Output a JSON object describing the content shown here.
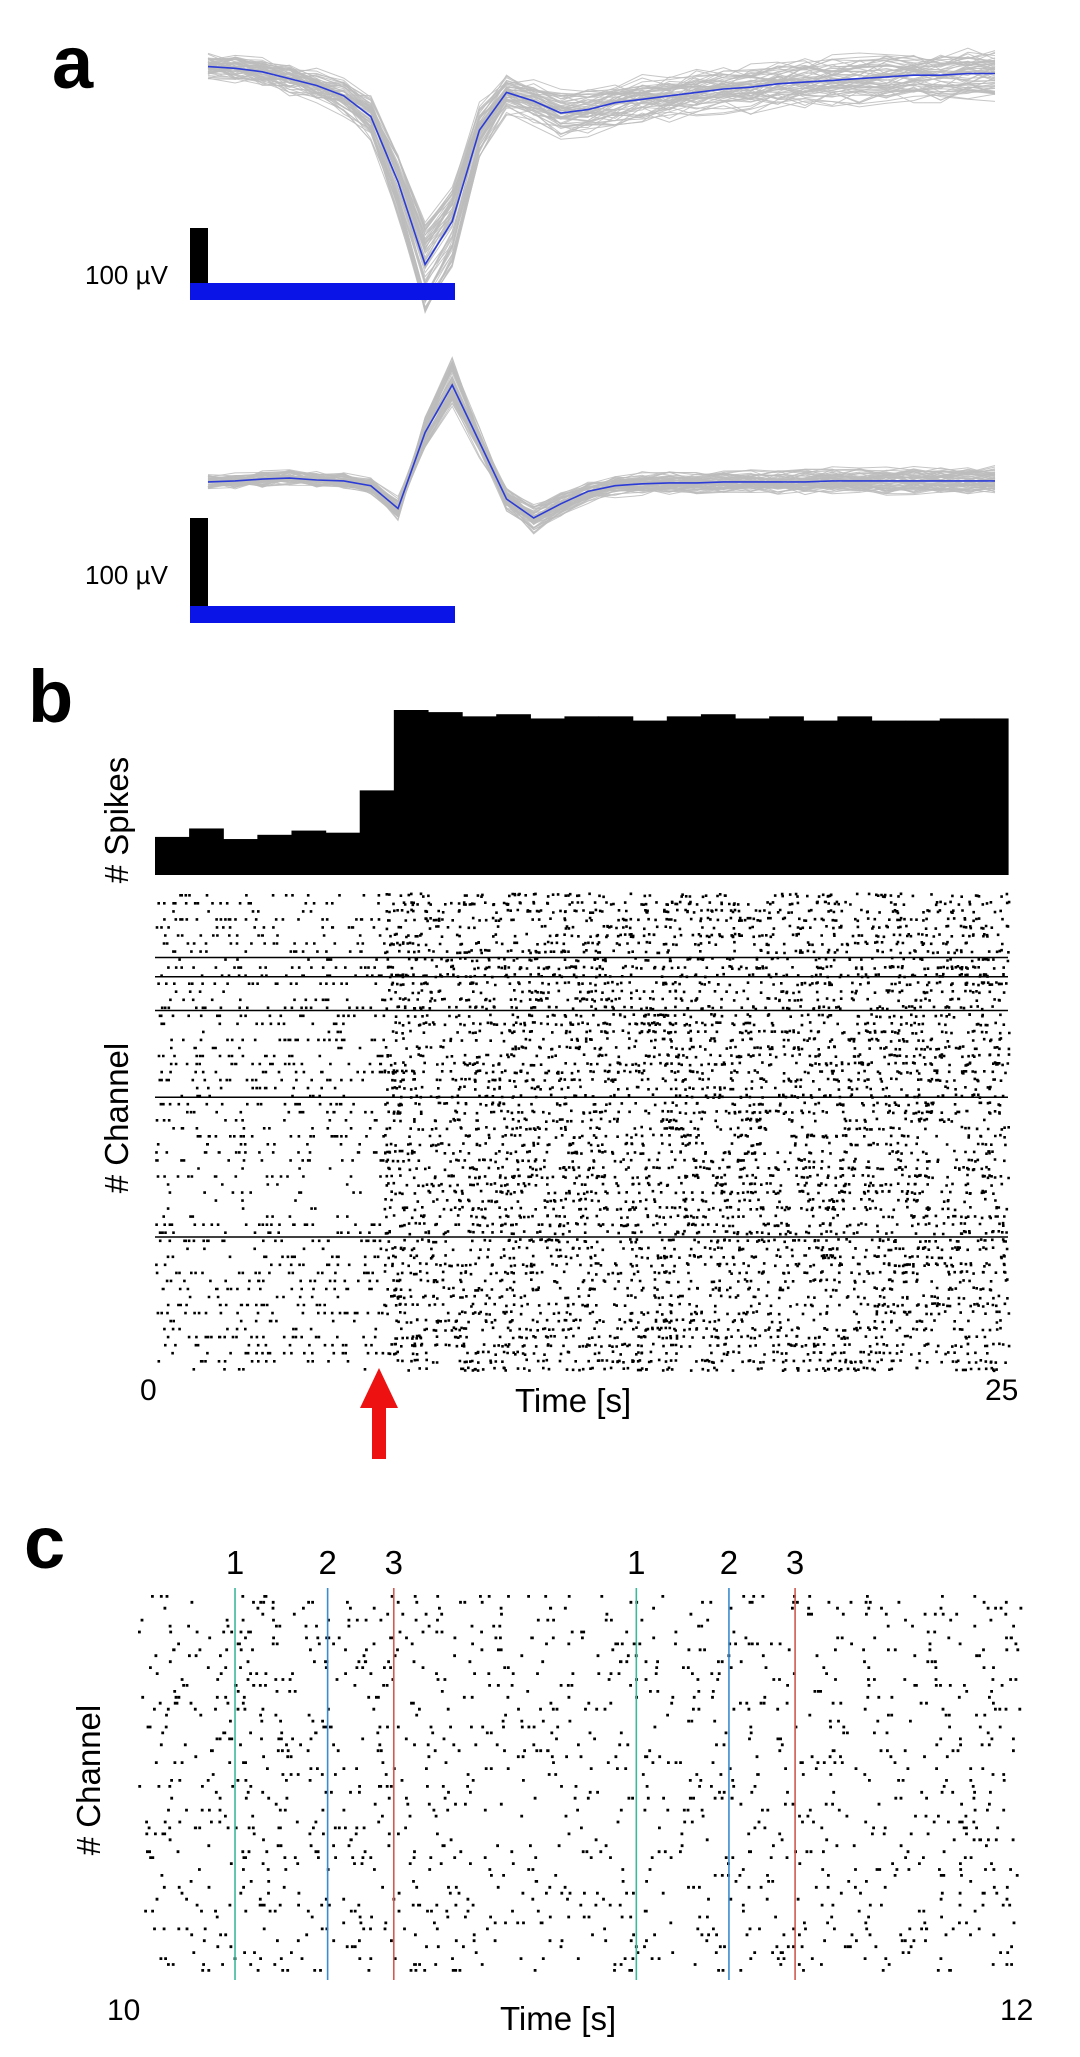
{
  "panel_a": {
    "letter": "a",
    "scale_label": "100 µV",
    "colors": {
      "trace": "#bcbcbc",
      "mean": "#2b3bd6",
      "scalebar_h": "#0a14e6",
      "scalebar_v": "#000000"
    }
  },
  "panel_b": {
    "letter": "b",
    "ylabel_top": "# Spikes",
    "ylabel_bottom": "# Channel",
    "xlabel": "Time [s]",
    "x_min_label": "0",
    "x_max_label": "25",
    "colors": {
      "bars": "#000000",
      "arrow": "#ee1111"
    }
  },
  "panel_c": {
    "letter": "c",
    "ylabel": "# Channel",
    "xlabel": "Time [s]",
    "x_min_label": "10",
    "x_max_label": "12",
    "markers": [
      {
        "label": "1",
        "color": "#3cb89a"
      },
      {
        "label": "2",
        "color": "#3a8cd0"
      },
      {
        "label": "3",
        "color": "#d05a50"
      },
      {
        "label": "1",
        "color": "#3cb89a"
      },
      {
        "label": "2",
        "color": "#3a8cd0"
      },
      {
        "label": "3",
        "color": "#d05a50"
      }
    ]
  },
  "chart_data": [
    {
      "type": "line",
      "panel": "a-top",
      "series": [
        {
          "values": [
            -5,
            -6,
            -8,
            -12,
            -16,
            -22,
            -34,
            -72,
            -120,
            -95,
            -42,
            -20,
            -25,
            -32,
            -30,
            -26,
            -24,
            -22,
            -20,
            -18,
            -17,
            -15,
            -14,
            -13,
            -12,
            -11,
            -10,
            -10,
            -9,
            -9
          ]
        }
      ]
    },
    {
      "type": "line",
      "panel": "a-bottom",
      "series": [
        {
          "values": [
            -2,
            -1,
            1,
            2,
            0,
            -1,
            -6,
            -30,
            50,
            100,
            40,
            -20,
            -40,
            -25,
            -12,
            -6,
            -4,
            -3,
            -3,
            -2,
            -2,
            -2,
            -2,
            -1,
            -1,
            -1,
            -1,
            -1,
            -1,
            -1
          ]
        }
      ]
    },
    {
      "type": "bar",
      "panel": "b-top",
      "x_range": [
        0,
        25
      ],
      "values": [
        18,
        22,
        17,
        19,
        21,
        20,
        40,
        78,
        77,
        75,
        76,
        74,
        75,
        75,
        73,
        75,
        76,
        74,
        75,
        73,
        75,
        73,
        73,
        74,
        74
      ]
    },
    {
      "type": "scatter",
      "panel": "b-raster",
      "x_range": [
        0,
        25
      ],
      "stimulus_time": 6.7
    },
    {
      "type": "scatter",
      "panel": "c-raster",
      "x_range": [
        10,
        12
      ],
      "marker_times": [
        10.22,
        10.43,
        10.58,
        11.13,
        11.34,
        11.49
      ]
    }
  ]
}
